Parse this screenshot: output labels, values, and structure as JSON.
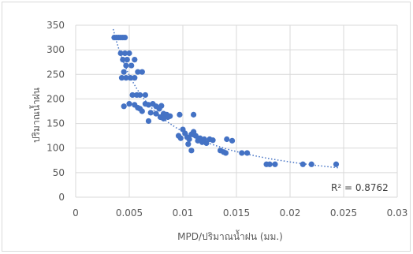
{
  "chart_data": {
    "type": "scatter",
    "title": "",
    "xlabel": "MPD/ปริมาณน้ำฝน (มม.)",
    "ylabel": "ปริมาณน้ำฝน",
    "xlim": [
      0,
      0.03
    ],
    "ylim": [
      0,
      350
    ],
    "xticks": [
      "0",
      "0.005",
      "0.01",
      "0.015",
      "0.02",
      "0.025",
      "0.03"
    ],
    "yticks": [
      "0",
      "50",
      "100",
      "150",
      "200",
      "250",
      "300",
      "350"
    ],
    "grid": true,
    "marker_color": "#4472c4",
    "trendline": {
      "type": "power",
      "style": "dotted",
      "color": "#4472c4",
      "x_range": [
        0.0035,
        0.0245
      ],
      "label": "R² = 0.8762"
    },
    "points": [
      [
        0.0036,
        325
      ],
      [
        0.0038,
        325
      ],
      [
        0.004,
        325
      ],
      [
        0.0042,
        325
      ],
      [
        0.0044,
        325
      ],
      [
        0.0046,
        325
      ],
      [
        0.0042,
        293
      ],
      [
        0.0046,
        293
      ],
      [
        0.005,
        293
      ],
      [
        0.0044,
        280
      ],
      [
        0.0048,
        280
      ],
      [
        0.0055,
        280
      ],
      [
        0.0047,
        268
      ],
      [
        0.0052,
        268
      ],
      [
        0.0045,
        255
      ],
      [
        0.0058,
        255
      ],
      [
        0.0062,
        255
      ],
      [
        0.0043,
        243
      ],
      [
        0.0047,
        243
      ],
      [
        0.0051,
        243
      ],
      [
        0.0055,
        243
      ],
      [
        0.0053,
        208
      ],
      [
        0.0057,
        208
      ],
      [
        0.006,
        208
      ],
      [
        0.0065,
        208
      ],
      [
        0.0045,
        185
      ],
      [
        0.005,
        190
      ],
      [
        0.0055,
        188
      ],
      [
        0.0058,
        182
      ],
      [
        0.006,
        180
      ],
      [
        0.0062,
        175
      ],
      [
        0.0065,
        190
      ],
      [
        0.0068,
        188
      ],
      [
        0.007,
        172
      ],
      [
        0.0072,
        190
      ],
      [
        0.0075,
        185
      ],
      [
        0.0078,
        180
      ],
      [
        0.008,
        186
      ],
      [
        0.0082,
        170
      ],
      [
        0.0085,
        168
      ],
      [
        0.0088,
        165
      ],
      [
        0.0082,
        160
      ],
      [
        0.0068,
        155
      ],
      [
        0.0075,
        170
      ],
      [
        0.0079,
        163
      ],
      [
        0.0086,
        163
      ],
      [
        0.0097,
        168
      ],
      [
        0.011,
        168
      ],
      [
        0.0096,
        125
      ],
      [
        0.0098,
        120
      ],
      [
        0.01,
        138
      ],
      [
        0.0102,
        130
      ],
      [
        0.0104,
        122
      ],
      [
        0.0106,
        118
      ],
      [
        0.0108,
        128
      ],
      [
        0.011,
        133
      ],
      [
        0.0112,
        125
      ],
      [
        0.0114,
        115
      ],
      [
        0.0116,
        120
      ],
      [
        0.0118,
        112
      ],
      [
        0.012,
        118
      ],
      [
        0.0122,
        110
      ],
      [
        0.0125,
        118
      ],
      [
        0.0128,
        116
      ],
      [
        0.0105,
        108
      ],
      [
        0.0108,
        95
      ],
      [
        0.0135,
        95
      ],
      [
        0.0138,
        92
      ],
      [
        0.014,
        90
      ],
      [
        0.0141,
        118
      ],
      [
        0.0146,
        115
      ],
      [
        0.0155,
        90
      ],
      [
        0.016,
        90
      ],
      [
        0.0178,
        67
      ],
      [
        0.0181,
        67
      ],
      [
        0.0186,
        67
      ],
      [
        0.0212,
        67
      ],
      [
        0.022,
        67
      ],
      [
        0.0243,
        67
      ]
    ]
  }
}
